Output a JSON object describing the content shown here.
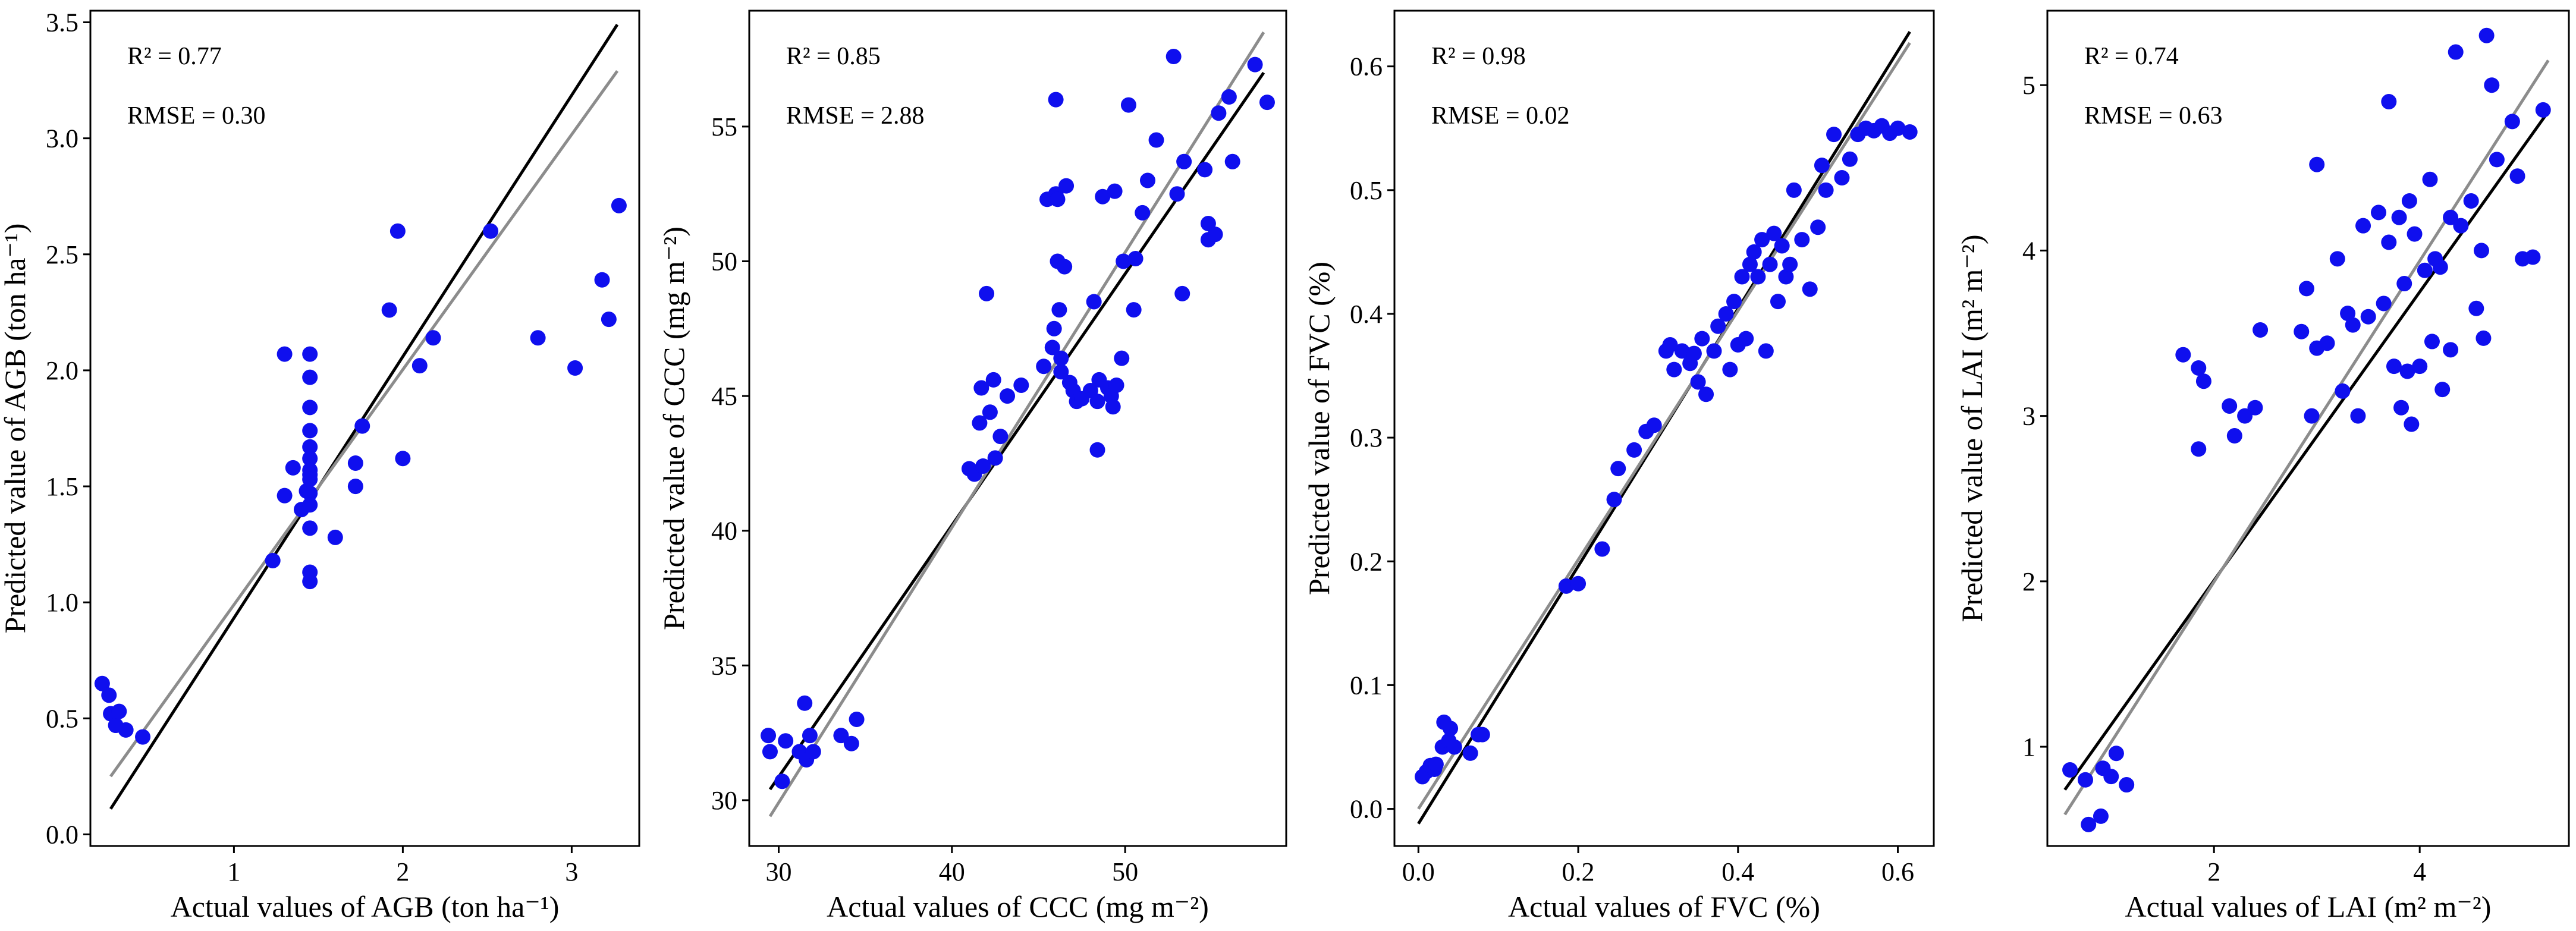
{
  "chart_data": [
    {
      "type": "scatter",
      "variable": "AGB",
      "xlabel": "Actual values of AGB (ton ha⁻¹)",
      "ylabel": "Predicted value of AGB (ton ha⁻¹)",
      "xlim": [
        0.15,
        3.4
      ],
      "ylim": [
        -0.05,
        3.55
      ],
      "xticks": [
        1,
        2,
        3
      ],
      "yticks": [
        0.0,
        0.5,
        1.0,
        1.5,
        2.0,
        2.5,
        3.0,
        3.5
      ],
      "tick_decimals": 1,
      "x_tick_decimals": 0,
      "stats": {
        "r2": "R² = 0.77",
        "rmse": "RMSE = 0.30"
      },
      "one_to_one_line": [
        [
          0.27,
          0.11
        ],
        [
          3.27,
          3.49
        ]
      ],
      "fit_line": [
        [
          0.27,
          0.25
        ],
        [
          3.27,
          3.29
        ]
      ],
      "points": [
        [
          0.22,
          0.65
        ],
        [
          0.26,
          0.6
        ],
        [
          0.27,
          0.52
        ],
        [
          0.3,
          0.47
        ],
        [
          0.32,
          0.53
        ],
        [
          0.36,
          0.45
        ],
        [
          0.46,
          0.42
        ],
        [
          1.23,
          1.18
        ],
        [
          1.3,
          2.07
        ],
        [
          1.3,
          1.46
        ],
        [
          1.35,
          1.58
        ],
        [
          1.4,
          1.4
        ],
        [
          1.43,
          1.48
        ],
        [
          1.45,
          2.07
        ],
        [
          1.45,
          1.97
        ],
        [
          1.45,
          1.84
        ],
        [
          1.45,
          1.74
        ],
        [
          1.45,
          1.67
        ],
        [
          1.45,
          1.62
        ],
        [
          1.45,
          1.57
        ],
        [
          1.45,
          1.55
        ],
        [
          1.45,
          1.53
        ],
        [
          1.45,
          1.47
        ],
        [
          1.45,
          1.42
        ],
        [
          1.45,
          1.32
        ],
        [
          1.45,
          1.13
        ],
        [
          1.45,
          1.09
        ],
        [
          1.6,
          1.28
        ],
        [
          1.72,
          1.6
        ],
        [
          1.72,
          1.5
        ],
        [
          1.76,
          1.76
        ],
        [
          1.92,
          2.26
        ],
        [
          1.97,
          2.6
        ],
        [
          2.0,
          1.62
        ],
        [
          2.1,
          2.02
        ],
        [
          2.18,
          2.14
        ],
        [
          2.52,
          2.6
        ],
        [
          2.8,
          2.14
        ],
        [
          3.02,
          2.01
        ],
        [
          3.18,
          2.39
        ],
        [
          3.22,
          2.22
        ],
        [
          3.28,
          2.71
        ]
      ]
    },
    {
      "type": "scatter",
      "variable": "CCC",
      "xlabel": "Actual values of CCC (mg m⁻²)",
      "ylabel": "Predicted value of CCC (mg m⁻²)",
      "xlim": [
        28.3,
        59.3
      ],
      "ylim": [
        28.3,
        59.3
      ],
      "xticks": [
        30,
        40,
        50
      ],
      "yticks": [
        30,
        35,
        40,
        45,
        50,
        55
      ],
      "tick_decimals": 0,
      "x_tick_decimals": 0,
      "stats": {
        "r2": "R² = 0.85",
        "rmse": "RMSE = 2.88"
      },
      "one_to_one_line": [
        [
          29.5,
          30.4
        ],
        [
          58.0,
          57.0
        ]
      ],
      "fit_line": [
        [
          29.5,
          29.4
        ],
        [
          58.0,
          58.5
        ]
      ],
      "points": [
        [
          29.4,
          32.4
        ],
        [
          29.5,
          31.8
        ],
        [
          30.2,
          30.7
        ],
        [
          30.4,
          32.2
        ],
        [
          31.2,
          31.8
        ],
        [
          31.5,
          33.6
        ],
        [
          31.6,
          31.5
        ],
        [
          31.8,
          32.4
        ],
        [
          32.0,
          31.8
        ],
        [
          33.6,
          32.4
        ],
        [
          34.2,
          32.1
        ],
        [
          34.5,
          33.0
        ],
        [
          41.0,
          42.3
        ],
        [
          41.3,
          42.1
        ],
        [
          41.6,
          44.0
        ],
        [
          41.7,
          45.3
        ],
        [
          41.8,
          42.4
        ],
        [
          42.0,
          48.8
        ],
        [
          42.2,
          44.4
        ],
        [
          42.4,
          45.6
        ],
        [
          42.5,
          42.7
        ],
        [
          42.8,
          43.5
        ],
        [
          43.2,
          45.0
        ],
        [
          44.0,
          45.4
        ],
        [
          45.3,
          46.1
        ],
        [
          45.5,
          52.3
        ],
        [
          45.8,
          46.8
        ],
        [
          45.9,
          47.5
        ],
        [
          46.0,
          56.0
        ],
        [
          46.0,
          52.5
        ],
        [
          46.1,
          52.3
        ],
        [
          46.1,
          50.0
        ],
        [
          46.2,
          48.2
        ],
        [
          46.3,
          46.4
        ],
        [
          46.3,
          45.9
        ],
        [
          46.5,
          49.8
        ],
        [
          46.6,
          52.8
        ],
        [
          46.8,
          45.5
        ],
        [
          47.0,
          45.2
        ],
        [
          47.2,
          44.8
        ],
        [
          47.5,
          44.9
        ],
        [
          48.0,
          45.2
        ],
        [
          48.2,
          48.5
        ],
        [
          48.4,
          44.8
        ],
        [
          48.4,
          43.0
        ],
        [
          48.5,
          45.6
        ],
        [
          48.7,
          52.4
        ],
        [
          49.0,
          45.3
        ],
        [
          49.2,
          45.0
        ],
        [
          49.3,
          44.6
        ],
        [
          49.4,
          52.6
        ],
        [
          49.5,
          45.4
        ],
        [
          49.8,
          46.4
        ],
        [
          49.9,
          50.0
        ],
        [
          50.2,
          55.8
        ],
        [
          50.5,
          48.2
        ],
        [
          50.6,
          50.1
        ],
        [
          51.0,
          51.8
        ],
        [
          51.3,
          53.0
        ],
        [
          51.8,
          54.5
        ],
        [
          52.8,
          57.6
        ],
        [
          53.0,
          52.5
        ],
        [
          53.3,
          48.8
        ],
        [
          53.4,
          53.7
        ],
        [
          54.6,
          53.4
        ],
        [
          54.8,
          50.8
        ],
        [
          54.8,
          51.4
        ],
        [
          55.2,
          51.0
        ],
        [
          55.4,
          55.5
        ],
        [
          56.0,
          56.1
        ],
        [
          56.2,
          53.7
        ],
        [
          57.5,
          57.3
        ],
        [
          58.2,
          55.9
        ]
      ]
    },
    {
      "type": "scatter",
      "variable": "FVC",
      "xlabel": "Actual values of FVC (%)",
      "ylabel": "Predicted value of FVC (%)",
      "xlim": [
        -0.03,
        0.645
      ],
      "ylim": [
        -0.03,
        0.645
      ],
      "xticks": [
        0.0,
        0.2,
        0.4,
        0.6
      ],
      "yticks": [
        0.0,
        0.1,
        0.2,
        0.3,
        0.4,
        0.5,
        0.6
      ],
      "tick_decimals": 1,
      "x_tick_decimals": 1,
      "stats": {
        "r2": "R² = 0.98",
        "rmse": "RMSE = 0.02"
      },
      "one_to_one_line": [
        [
          0.0,
          -0.012
        ],
        [
          0.615,
          0.628
        ]
      ],
      "fit_line": [
        [
          0.0,
          0.0
        ],
        [
          0.615,
          0.619
        ]
      ],
      "points": [
        [
          0.005,
          0.026
        ],
        [
          0.01,
          0.03
        ],
        [
          0.015,
          0.035
        ],
        [
          0.02,
          0.032
        ],
        [
          0.022,
          0.036
        ],
        [
          0.03,
          0.05
        ],
        [
          0.032,
          0.07
        ],
        [
          0.038,
          0.055
        ],
        [
          0.04,
          0.065
        ],
        [
          0.045,
          0.05
        ],
        [
          0.065,
          0.045
        ],
        [
          0.075,
          0.06
        ],
        [
          0.08,
          0.06
        ],
        [
          0.185,
          0.18
        ],
        [
          0.2,
          0.182
        ],
        [
          0.23,
          0.21
        ],
        [
          0.245,
          0.25
        ],
        [
          0.25,
          0.275
        ],
        [
          0.27,
          0.29
        ],
        [
          0.285,
          0.305
        ],
        [
          0.295,
          0.31
        ],
        [
          0.31,
          0.37
        ],
        [
          0.315,
          0.375
        ],
        [
          0.32,
          0.355
        ],
        [
          0.33,
          0.37
        ],
        [
          0.34,
          0.36
        ],
        [
          0.345,
          0.368
        ],
        [
          0.35,
          0.345
        ],
        [
          0.355,
          0.38
        ],
        [
          0.36,
          0.335
        ],
        [
          0.37,
          0.37
        ],
        [
          0.375,
          0.39
        ],
        [
          0.385,
          0.4
        ],
        [
          0.39,
          0.355
        ],
        [
          0.395,
          0.41
        ],
        [
          0.4,
          0.375
        ],
        [
          0.405,
          0.43
        ],
        [
          0.41,
          0.38
        ],
        [
          0.415,
          0.44
        ],
        [
          0.42,
          0.45
        ],
        [
          0.425,
          0.43
        ],
        [
          0.43,
          0.46
        ],
        [
          0.435,
          0.37
        ],
        [
          0.44,
          0.44
        ],
        [
          0.445,
          0.465
        ],
        [
          0.45,
          0.41
        ],
        [
          0.455,
          0.455
        ],
        [
          0.46,
          0.43
        ],
        [
          0.465,
          0.44
        ],
        [
          0.47,
          0.5
        ],
        [
          0.48,
          0.46
        ],
        [
          0.49,
          0.42
        ],
        [
          0.5,
          0.47
        ],
        [
          0.505,
          0.52
        ],
        [
          0.51,
          0.5
        ],
        [
          0.52,
          0.545
        ],
        [
          0.53,
          0.51
        ],
        [
          0.54,
          0.525
        ],
        [
          0.55,
          0.545
        ],
        [
          0.56,
          0.55
        ],
        [
          0.57,
          0.548
        ],
        [
          0.58,
          0.552
        ],
        [
          0.59,
          0.546
        ],
        [
          0.6,
          0.55
        ],
        [
          0.615,
          0.547
        ]
      ]
    },
    {
      "type": "scatter",
      "variable": "LAI",
      "xlabel": "Actual values of LAI (m² m⁻²)",
      "ylabel": "Predicted value of LAI (m² m⁻²)",
      "xlim": [
        0.38,
        5.45
      ],
      "ylim": [
        0.4,
        5.45
      ],
      "xticks": [
        2,
        4
      ],
      "yticks": [
        1,
        2,
        3,
        4,
        5
      ],
      "tick_decimals": 0,
      "x_tick_decimals": 0,
      "stats": {
        "r2": "R² = 0.74",
        "rmse": "RMSE = 0.63"
      },
      "one_to_one_line": [
        [
          0.55,
          0.74
        ],
        [
          5.25,
          4.84
        ]
      ],
      "fit_line": [
        [
          0.55,
          0.59
        ],
        [
          5.25,
          5.15
        ]
      ],
      "points": [
        [
          0.6,
          0.86
        ],
        [
          0.75,
          0.8
        ],
        [
          0.78,
          0.53
        ],
        [
          0.9,
          0.58
        ],
        [
          0.92,
          0.87
        ],
        [
          1.0,
          0.82
        ],
        [
          1.05,
          0.96
        ],
        [
          1.15,
          0.77
        ],
        [
          1.7,
          3.37
        ],
        [
          1.85,
          3.29
        ],
        [
          1.9,
          3.21
        ],
        [
          1.85,
          2.8
        ],
        [
          2.15,
          3.06
        ],
        [
          2.2,
          2.88
        ],
        [
          2.3,
          3.0
        ],
        [
          2.4,
          3.05
        ],
        [
          2.45,
          3.52
        ],
        [
          2.85,
          3.51
        ],
        [
          2.9,
          3.77
        ],
        [
          2.95,
          3.0
        ],
        [
          3.0,
          4.52
        ],
        [
          3.0,
          3.41
        ],
        [
          3.1,
          3.44
        ],
        [
          3.2,
          3.95
        ],
        [
          3.25,
          3.15
        ],
        [
          3.3,
          3.62
        ],
        [
          3.35,
          3.55
        ],
        [
          3.4,
          3.0
        ],
        [
          3.45,
          4.15
        ],
        [
          3.5,
          3.6
        ],
        [
          3.6,
          4.23
        ],
        [
          3.65,
          3.68
        ],
        [
          3.7,
          4.9
        ],
        [
          3.7,
          4.05
        ],
        [
          3.75,
          3.3
        ],
        [
          3.8,
          4.2
        ],
        [
          3.82,
          3.05
        ],
        [
          3.85,
          3.8
        ],
        [
          3.88,
          3.27
        ],
        [
          3.9,
          4.3
        ],
        [
          3.92,
          2.95
        ],
        [
          3.95,
          4.1
        ],
        [
          4.0,
          3.3
        ],
        [
          4.05,
          3.88
        ],
        [
          4.1,
          4.43
        ],
        [
          4.12,
          3.45
        ],
        [
          4.15,
          3.95
        ],
        [
          4.2,
          3.9
        ],
        [
          4.22,
          3.16
        ],
        [
          4.3,
          3.4
        ],
        [
          4.3,
          4.2
        ],
        [
          4.35,
          5.2
        ],
        [
          4.4,
          4.15
        ],
        [
          4.5,
          4.3
        ],
        [
          4.55,
          3.65
        ],
        [
          4.6,
          4.0
        ],
        [
          4.62,
          3.47
        ],
        [
          4.65,
          5.3
        ],
        [
          4.7,
          5.0
        ],
        [
          4.75,
          4.55
        ],
        [
          4.9,
          4.78
        ],
        [
          4.95,
          4.45
        ],
        [
          5.0,
          3.95
        ],
        [
          5.1,
          3.96
        ],
        [
          5.2,
          4.85
        ]
      ]
    }
  ]
}
